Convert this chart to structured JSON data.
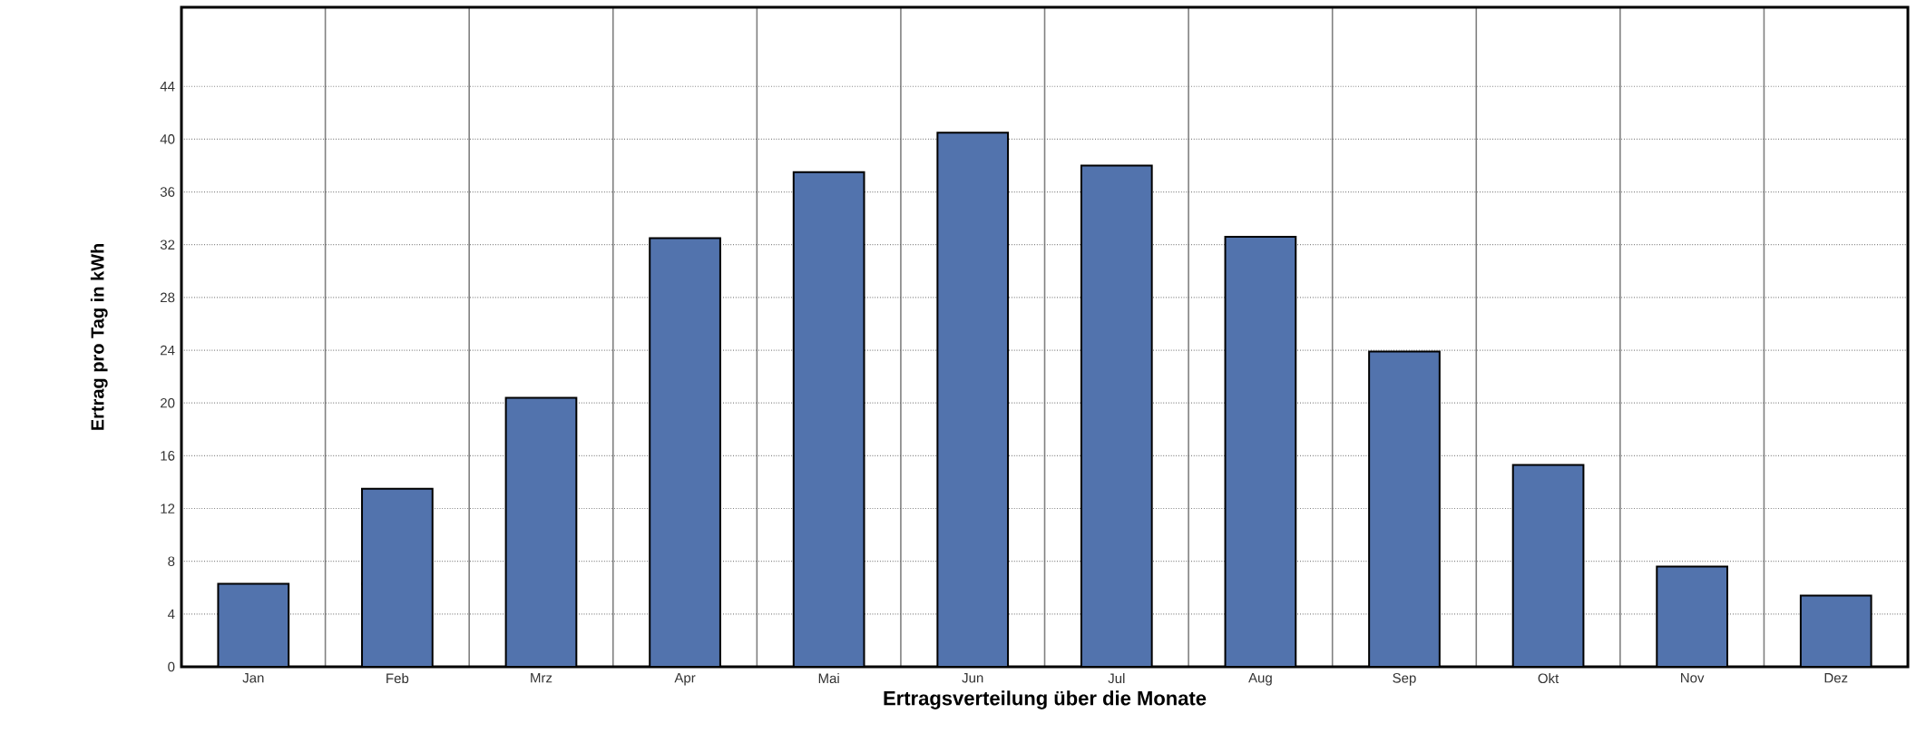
{
  "chart_data": {
    "type": "bar",
    "xlabel": "Ertragsverteilung über die Monate",
    "ylabel": "Ertrag pro Tag in kWh",
    "categories": [
      "Jan",
      "Feb",
      "Mrz",
      "Apr",
      "Mai",
      "Jun",
      "Jul",
      "Aug",
      "Sep",
      "Okt",
      "Nov",
      "Dez"
    ],
    "values": [
      6.3,
      13.5,
      20.4,
      32.5,
      37.5,
      40.5,
      38.0,
      32.6,
      23.9,
      15.3,
      7.6,
      5.4
    ],
    "color": "#5273ad",
    "ylim": [
      0,
      50
    ],
    "yticks": [
      0,
      4,
      8,
      12,
      16,
      20,
      24,
      28,
      32,
      36,
      40,
      44
    ],
    "grid": true
  }
}
